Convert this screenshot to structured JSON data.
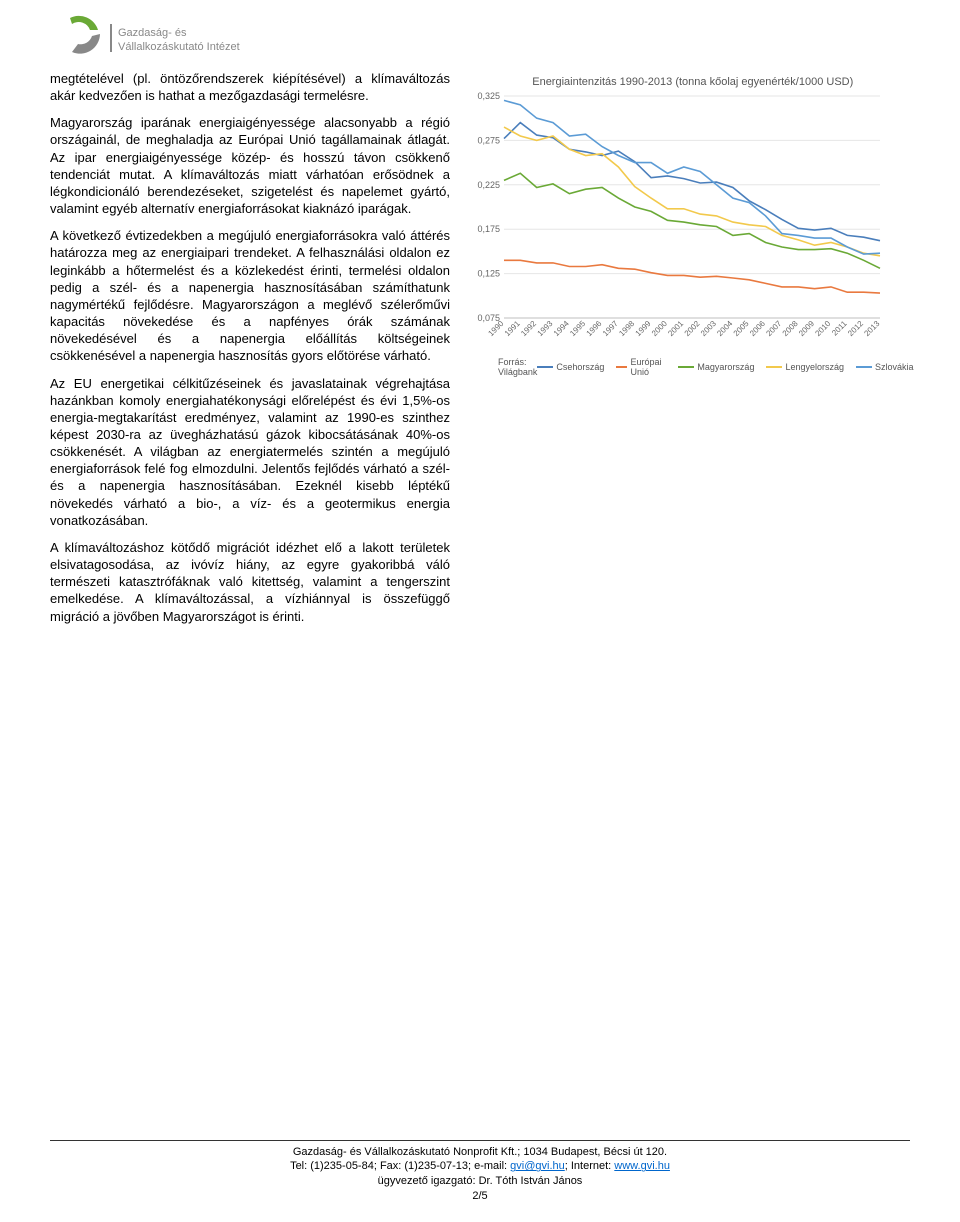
{
  "logo": {
    "primary_color": "#6aa936",
    "secondary_color": "#888888",
    "line1": "Gazdaság- és",
    "line2": "Vállalkozáskutató Intézet"
  },
  "paragraphs": {
    "p1": "megtételével (pl. öntözőrendszerek kiépítésével) a klímaváltozás akár kedvezően is hathat a mezőgazdasági termelésre.",
    "p2": "Magyarország iparának energiaigényessége alacsonyabb a régió országainál, de meghaladja az Európai Unió tagállamainak átlagát. Az ipar energiaigényessége közép- és hosszú távon csökkenő tendenciát mutat. A klímaváltozás miatt várhatóan erősödnek a légkondicionáló berendezéseket, szigetelést és napelemet gyártó, valamint egyéb alternatív energiaforrásokat kiaknázó iparágak.",
    "p3": "A következő évtizedekben a megújuló energiaforrásokra való áttérés határozza meg az energiaipari trendeket. A felhasználási oldalon ez leginkább a hőtermelést és a közlekedést érinti, termelési oldalon pedig a szél- és a napenergia hasznosításában számíthatunk nagymértékű fejlődésre. Magyarországon a meglévő szélerőművi kapacitás növekedése és a napfényes órák számának növekedésével és a napenergia előállítás költségeinek csökkenésével a napenergia hasznosítás gyors előtörése várható.",
    "p4": "Az EU energetikai célkitűzéseinek és javaslatainak végrehajtása hazánkban komoly energiahatékonysági előrelépést és évi 1,5%-os energia-megtakarítást eredményez, valamint az 1990-es szinthez képest 2030-ra az üvegházhatású gázok kibocsátásának 40%-os csökkenését. A világban az energiatermelés szintén a megújuló energiaforrások felé fog elmozdulni. Jelentős fejlődés várható a szél- és a napenergia hasznosításában. Ezeknél kisebb léptékű növekedés várható a bio-, a víz- és a geotermikus energia vonatkozásában.",
    "p5": "A klímaváltozáshoz kötődő migrációt idézhet elő a lakott területek elsivatagosodása, az ivóvíz hiány, az egyre gyakoribbá váló természeti katasztrófáknak való kitettség, valamint a tengerszint emelkedése. A klímaváltozással, a vízhiánnyal is összefüggő migráció a jövőben Magyarországot is érinti."
  },
  "chart": {
    "title": "Energiaintenzitás 1990-2013 (tonna kőolaj egyenérték/1000 USD)",
    "type": "line",
    "background_color": "#ffffff",
    "grid_color": "#e6e6e6",
    "axis_color": "#bfbfbf",
    "label_color": "#666666",
    "label_fontsize": 9,
    "ylim": [
      0.075,
      0.325
    ],
    "ytick_step": 0.05,
    "ytick_labels": [
      "0,075",
      "0,125",
      "0,175",
      "0,225",
      "0,275",
      "0,325"
    ],
    "x_start": 1990,
    "x_end": 2013,
    "x_labels": [
      "1990",
      "1991",
      "1992",
      "1993",
      "1994",
      "1995",
      "1996",
      "1997",
      "1998",
      "1999",
      "2000",
      "2001",
      "2002",
      "2003",
      "2004",
      "2005",
      "2006",
      "2007",
      "2008",
      "2009",
      "2010",
      "2011",
      "2012",
      "2013"
    ],
    "source_label": "Forrás: Világbank",
    "line_width": 1.6,
    "series": [
      {
        "name": "Csehország",
        "color": "#4a7ebb",
        "data": [
          0.277,
          0.295,
          0.281,
          0.278,
          0.265,
          0.262,
          0.258,
          0.263,
          0.251,
          0.233,
          0.235,
          0.232,
          0.227,
          0.228,
          0.222,
          0.207,
          0.197,
          0.186,
          0.176,
          0.174,
          0.176,
          0.168,
          0.166,
          0.162
        ]
      },
      {
        "name": "Európai Unió",
        "color": "#e9793f",
        "data": [
          0.14,
          0.14,
          0.137,
          0.137,
          0.133,
          0.133,
          0.135,
          0.131,
          0.13,
          0.126,
          0.123,
          0.123,
          0.121,
          0.122,
          0.12,
          0.118,
          0.114,
          0.11,
          0.11,
          0.108,
          0.11,
          0.104,
          0.104,
          0.103
        ]
      },
      {
        "name": "Magyarország",
        "color": "#6aa936",
        "data": [
          0.23,
          0.238,
          0.222,
          0.226,
          0.215,
          0.22,
          0.222,
          0.21,
          0.2,
          0.195,
          0.185,
          0.183,
          0.18,
          0.178,
          0.168,
          0.17,
          0.16,
          0.155,
          0.152,
          0.152,
          0.153,
          0.148,
          0.14,
          0.131
        ]
      },
      {
        "name": "Lengyelország",
        "color": "#f2c94c",
        "data": [
          0.29,
          0.28,
          0.275,
          0.28,
          0.265,
          0.258,
          0.26,
          0.245,
          0.223,
          0.21,
          0.198,
          0.198,
          0.192,
          0.19,
          0.183,
          0.18,
          0.178,
          0.168,
          0.163,
          0.157,
          0.16,
          0.155,
          0.148,
          0.145
        ]
      },
      {
        "name": "Szlovákia",
        "color": "#5b9bd5",
        "data": [
          0.32,
          0.315,
          0.3,
          0.295,
          0.28,
          0.282,
          0.268,
          0.258,
          0.25,
          0.25,
          0.238,
          0.245,
          0.24,
          0.225,
          0.21,
          0.205,
          0.19,
          0.17,
          0.168,
          0.165,
          0.165,
          0.155,
          0.147,
          0.148
        ]
      }
    ],
    "legend_labels": {
      "cz": "Csehország",
      "eu": "Európai Unió",
      "hu": "Magyarország",
      "pl": "Lengyelország",
      "sk": "Szlovákia"
    }
  },
  "footer": {
    "line1a": "Gazdaság- és Vállalkozáskutató Nonprofit Kft.; 1034 Budapest, Bécsi út 120.",
    "line2_pre": "Tel: (1)235-05-84; Fax: (1)235-07-13; e-mail: ",
    "email": "gvi@gvi.hu",
    "line2_mid": "; Internet: ",
    "website": "www.gvi.hu",
    "line3": "ügyvezető igazgató: Dr. Tóth István János",
    "page_number": "2/5"
  }
}
